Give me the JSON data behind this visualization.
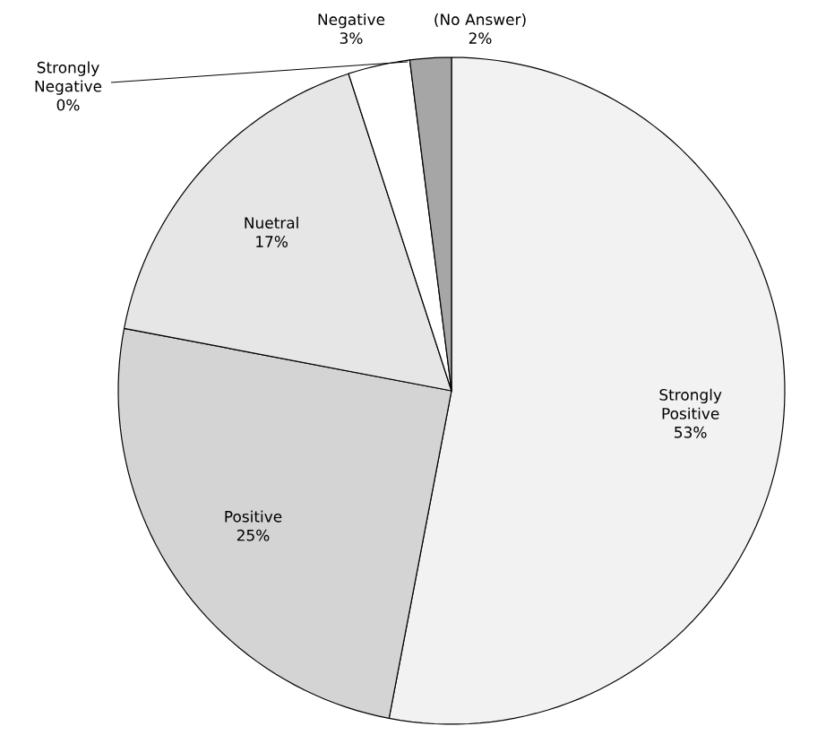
{
  "chart_data": {
    "type": "pie",
    "categories": [
      "Strongly Positive",
      "Positive",
      "Nuetral",
      "Negative",
      "Strongly Negative",
      "(No Answer)"
    ],
    "values": [
      53,
      25,
      17,
      3,
      0,
      2
    ],
    "value_labels": [
      "53%",
      "25%",
      "17%",
      "3%",
      "0%",
      "2%"
    ],
    "colors": [
      "#f2f2f2",
      "#d4d4d4",
      "#e6e6e6",
      "#ffffff",
      "#ffffff",
      "#a6a6a6"
    ]
  }
}
